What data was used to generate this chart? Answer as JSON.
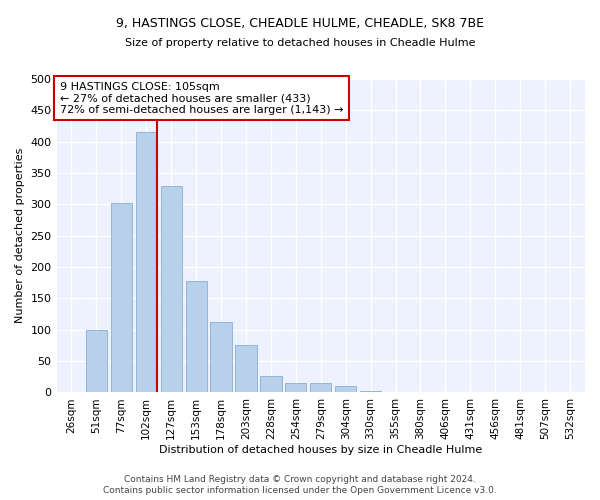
{
  "title1": "9, HASTINGS CLOSE, CHEADLE HULME, CHEADLE, SK8 7BE",
  "title2": "Size of property relative to detached houses in Cheadle Hulme",
  "xlabel": "Distribution of detached houses by size in Cheadle Hulme",
  "ylabel": "Number of detached properties",
  "categories": [
    "26sqm",
    "51sqm",
    "77sqm",
    "102sqm",
    "127sqm",
    "153sqm",
    "178sqm",
    "203sqm",
    "228sqm",
    "254sqm",
    "279sqm",
    "304sqm",
    "330sqm",
    "355sqm",
    "380sqm",
    "406sqm",
    "431sqm",
    "456sqm",
    "481sqm",
    "507sqm",
    "532sqm"
  ],
  "values": [
    1,
    99,
    302,
    416,
    330,
    178,
    113,
    76,
    26,
    15,
    15,
    10,
    3,
    1,
    1,
    1,
    0,
    0,
    1,
    0,
    1
  ],
  "bar_color": "#b8d0ea",
  "bar_edge_color": "#88afd4",
  "vline_x": 3,
  "vline_color": "#cc0000",
  "annotation_text": "9 HASTINGS CLOSE: 105sqm\n← 27% of detached houses are smaller (433)\n72% of semi-detached houses are larger (1,143) →",
  "annotation_box_color": "#ffffff",
  "annotation_box_edge": "#cc0000",
  "ylim": [
    0,
    500
  ],
  "yticks": [
    0,
    50,
    100,
    150,
    200,
    250,
    300,
    350,
    400,
    450,
    500
  ],
  "footer1": "Contains HM Land Registry data © Crown copyright and database right 2024.",
  "footer2": "Contains public sector information licensed under the Open Government Licence v3.0.",
  "bg_color": "#ffffff",
  "plot_bg_color": "#eef2ff"
}
